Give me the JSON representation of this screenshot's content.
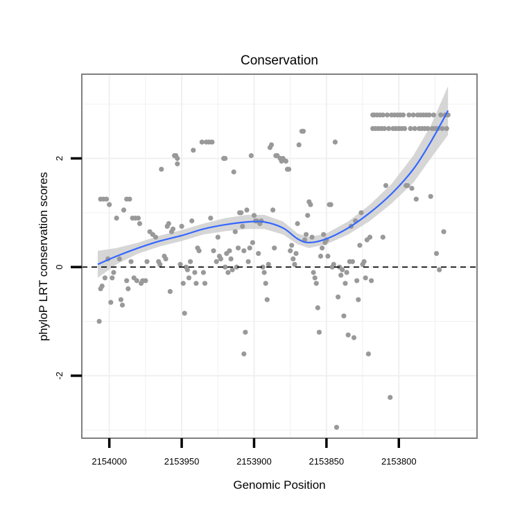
{
  "chart_data": {
    "type": "scatter",
    "title": "Conservation",
    "xlabel": "Genomic Position",
    "ylabel": "phyloP LRT conservation scores",
    "x_reversed": true,
    "xlim": [
      2154019,
      2153746
    ],
    "ylim": [
      -3.15,
      3.55
    ],
    "x_ticks": [
      2154000,
      2153950,
      2153900,
      2153850,
      2153800
    ],
    "x_tick_labels": [
      "2154000",
      "2153950",
      "2153900",
      "2153850",
      "2153800"
    ],
    "y_ticks": [
      2,
      0,
      -2
    ],
    "y_tick_labels": [
      "2",
      "0",
      "-2"
    ],
    "reference_line": {
      "y": 0,
      "style": "dashed"
    },
    "colors": {
      "points": "#999999",
      "smooth": "#3366ff",
      "band": "#c8c8c8",
      "frame": "#7f7f7f",
      "grid": "#f0f0f0"
    },
    "series": [
      {
        "name": "phyloP scores",
        "points": [
          [
            2154007,
            -1.0
          ],
          [
            2154006,
            1.25
          ],
          [
            2154004,
            1.25
          ],
          [
            2154002,
            1.25
          ],
          [
            2154006,
            -0.4
          ],
          [
            2154005,
            -0.35
          ],
          [
            2154003,
            -0.2
          ],
          [
            2154001,
            0.15
          ],
          [
            2154000,
            1.15
          ],
          [
            2153999,
            -0.65
          ],
          [
            2153998,
            -0.2
          ],
          [
            2153997,
            -0.1
          ],
          [
            2153995,
            0.9
          ],
          [
            2153993,
            0.15
          ],
          [
            2153992,
            -0.6
          ],
          [
            2153991,
            -0.7
          ],
          [
            2153990,
            1.05
          ],
          [
            2153988,
            1.25
          ],
          [
            2153986,
            1.25
          ],
          [
            2153988,
            -0.25
          ],
          [
            2153987,
            -0.4
          ],
          [
            2153985,
            0.1
          ],
          [
            2153984,
            0.9
          ],
          [
            2153982,
            0.9
          ],
          [
            2153980,
            0.9
          ],
          [
            2153983,
            -0.2
          ],
          [
            2153981,
            -0.25
          ],
          [
            2153979,
            0.8
          ],
          [
            2153978,
            -0.3
          ],
          [
            2153977,
            -0.25
          ],
          [
            2153975,
            -0.25
          ],
          [
            2153974,
            0.1
          ],
          [
            2153972,
            0.65
          ],
          [
            2153970,
            0.6
          ],
          [
            2153968,
            0.55
          ],
          [
            2153966,
            0.1
          ],
          [
            2153965,
            0.05
          ],
          [
            2153964,
            1.8
          ],
          [
            2153962,
            0.2
          ],
          [
            2153961,
            0.15
          ],
          [
            2153960,
            0.75
          ],
          [
            2153959,
            0.8
          ],
          [
            2153958,
            -0.45
          ],
          [
            2153957,
            0.65
          ],
          [
            2153956,
            0.7
          ],
          [
            2153955,
            2.05
          ],
          [
            2153954,
            2.05
          ],
          [
            2153953,
            2.0
          ],
          [
            2153953,
            1.9
          ],
          [
            2153951,
            0.05
          ],
          [
            2153950,
            0.75
          ],
          [
            2153949,
            -0.3
          ],
          [
            2153948,
            -0.85
          ],
          [
            2153947,
            0.0
          ],
          [
            2153946,
            -0.05
          ],
          [
            2153945,
            -0.2
          ],
          [
            2153944,
            0.1
          ],
          [
            2153943,
            0.85
          ],
          [
            2153942,
            2.15
          ],
          [
            2153941,
            -0.1
          ],
          [
            2153940,
            -0.3
          ],
          [
            2153939,
            0.35
          ],
          [
            2153938,
            0.3
          ],
          [
            2153936,
            2.3
          ],
          [
            2153935,
            -0.1
          ],
          [
            2153934,
            -0.3
          ],
          [
            2153933,
            2.3
          ],
          [
            2153931,
            2.3
          ],
          [
            2153929,
            2.3
          ],
          [
            2153930,
            0.9
          ],
          [
            2153928,
            0.3
          ],
          [
            2153926,
            0.1
          ],
          [
            2153925,
            0.55
          ],
          [
            2153924,
            0.2
          ],
          [
            2153923,
            0.15
          ],
          [
            2153921,
            2.0
          ],
          [
            2153920,
            2.0
          ],
          [
            2153920,
            0.0
          ],
          [
            2153919,
            0.25
          ],
          [
            2153918,
            -0.1
          ],
          [
            2153917,
            0.3
          ],
          [
            2153916,
            0.15
          ],
          [
            2153915,
            -0.05
          ],
          [
            2153914,
            1.75
          ],
          [
            2153913,
            0.65
          ],
          [
            2153912,
            0.0
          ],
          [
            2153911,
            0.35
          ],
          [
            2153910,
            1.0
          ],
          [
            2153909,
            1.0
          ],
          [
            2153908,
            0.75
          ],
          [
            2153907,
            0.3
          ],
          [
            2153906,
            -1.2
          ],
          [
            2153907,
            -1.6
          ],
          [
            2153905,
            1.05
          ],
          [
            2153904,
            0.1
          ],
          [
            2153903,
            0.35
          ],
          [
            2153902,
            2.05
          ],
          [
            2153901,
            0.45
          ],
          [
            2153900,
            0.95
          ],
          [
            2153899,
            0.85
          ],
          [
            2153898,
            0.85
          ],
          [
            2153897,
            0.25
          ],
          [
            2153896,
            0.8
          ],
          [
            2153895,
            0.85
          ],
          [
            2153894,
            0.0
          ],
          [
            2153893,
            -0.1
          ],
          [
            2153892,
            -0.3
          ],
          [
            2153891,
            -0.6
          ],
          [
            2153890,
            0.05
          ],
          [
            2153889,
            2.2
          ],
          [
            2153888,
            2.25
          ],
          [
            2153887,
            1.05
          ],
          [
            2153886,
            0.35
          ],
          [
            2153885,
            2.05
          ],
          [
            2153884,
            2.05
          ],
          [
            2153882,
            2.0
          ],
          [
            2153881,
            1.95
          ],
          [
            2153880,
            2.0
          ],
          [
            2153878,
            1.95
          ],
          [
            2153877,
            1.8
          ],
          [
            2153876,
            1.8
          ],
          [
            2153875,
            0.3
          ],
          [
            2153874,
            0.4
          ],
          [
            2153873,
            0.15
          ],
          [
            2153872,
            0.05
          ],
          [
            2153871,
            0.25
          ],
          [
            2153870,
            0.8
          ],
          [
            2153869,
            2.25
          ],
          [
            2153867,
            2.5
          ],
          [
            2153866,
            2.5
          ],
          [
            2153865,
            0.5
          ],
          [
            2153864,
            0.6
          ],
          [
            2153863,
            0.95
          ],
          [
            2153862,
            1.2
          ],
          [
            2153861,
            1.15
          ],
          [
            2153860,
            0.55
          ],
          [
            2153859,
            -0.1
          ],
          [
            2153858,
            -0.2
          ],
          [
            2153857,
            -0.3
          ],
          [
            2153856,
            -0.75
          ],
          [
            2153855,
            -1.2
          ],
          [
            2153854,
            0.2
          ],
          [
            2153853,
            0.35
          ],
          [
            2153852,
            0.6
          ],
          [
            2153851,
            0.45
          ],
          [
            2153850,
            0.5
          ],
          [
            2153849,
            0.2
          ],
          [
            2153848,
            1.15
          ],
          [
            2153847,
            1.15
          ],
          [
            2153846,
            0.0
          ],
          [
            2153845,
            0.05
          ],
          [
            2153844,
            2.3
          ],
          [
            2153843,
            -2.95
          ],
          [
            2153842,
            -0.55
          ],
          [
            2153841,
            0.0
          ],
          [
            2153840,
            -0.15
          ],
          [
            2153839,
            -0.05
          ],
          [
            2153838,
            -0.9
          ],
          [
            2153837,
            -0.3
          ],
          [
            2153836,
            -0.1
          ],
          [
            2153835,
            -1.25
          ],
          [
            2153834,
            0.1
          ],
          [
            2153833,
            0.75
          ],
          [
            2153832,
            0.1
          ],
          [
            2153831,
            -1.3
          ],
          [
            2153830,
            0.85
          ],
          [
            2153829,
            -0.25
          ],
          [
            2153828,
            -0.6
          ],
          [
            2153827,
            0.4
          ],
          [
            2153826,
            1.0
          ],
          [
            2153825,
            0.05
          ],
          [
            2153824,
            0.1
          ],
          [
            2153823,
            -0.2
          ],
          [
            2153822,
            0.5
          ],
          [
            2153821,
            -1.6
          ],
          [
            2153820,
            0.55
          ],
          [
            2153819,
            -0.25
          ],
          [
            2153818,
            2.8
          ],
          [
            2153818,
            2.55
          ],
          [
            2153817,
            2.8
          ],
          [
            2153816,
            2.55
          ],
          [
            2153815,
            2.8
          ],
          [
            2153814,
            2.55
          ],
          [
            2153813,
            2.8
          ],
          [
            2153812,
            2.55
          ],
          [
            2153811,
            2.8
          ],
          [
            2153810,
            2.55
          ],
          [
            2153811,
            0.55
          ],
          [
            2153809,
            1.5
          ],
          [
            2153808,
            2.8
          ],
          [
            2153807,
            2.55
          ],
          [
            2153806,
            -2.4
          ],
          [
            2153805,
            2.8
          ],
          [
            2153804,
            2.55
          ],
          [
            2153803,
            2.8
          ],
          [
            2153802,
            2.55
          ],
          [
            2153801,
            2.8
          ],
          [
            2153800,
            2.55
          ],
          [
            2153799,
            2.8
          ],
          [
            2153798,
            2.55
          ],
          [
            2153797,
            2.8
          ],
          [
            2153796,
            2.55
          ],
          [
            2153795,
            1.5
          ],
          [
            2153794,
            1.5
          ],
          [
            2153793,
            2.8
          ],
          [
            2153792,
            2.55
          ],
          [
            2153791,
            1.45
          ],
          [
            2153790,
            2.8
          ],
          [
            2153789,
            2.55
          ],
          [
            2153788,
            1.25
          ],
          [
            2153787,
            2.8
          ],
          [
            2153786,
            2.55
          ],
          [
            2153785,
            2.8
          ],
          [
            2153784,
            2.55
          ],
          [
            2153783,
            2.8
          ],
          [
            2153782,
            2.55
          ],
          [
            2153781,
            2.8
          ],
          [
            2153780,
            2.55
          ],
          [
            2153779,
            2.8
          ],
          [
            2153778,
            1.3
          ],
          [
            2153777,
            2.55
          ],
          [
            2153776,
            2.8
          ],
          [
            2153775,
            2.55
          ],
          [
            2153774,
            0.25
          ],
          [
            2153773,
            2.55
          ],
          [
            2153772,
            -0.05
          ],
          [
            2153771,
            2.8
          ],
          [
            2153770,
            2.55
          ],
          [
            2153769,
            0.65
          ],
          [
            2153768,
            2.8
          ],
          [
            2153767,
            2.55
          ],
          [
            2153766,
            2.8
          ]
        ]
      },
      {
        "name": "loess fit",
        "curve": [
          [
            2154008,
            0.05
          ],
          [
            2153995,
            0.2
          ],
          [
            2153980,
            0.35
          ],
          [
            2153965,
            0.48
          ],
          [
            2153950,
            0.58
          ],
          [
            2153935,
            0.7
          ],
          [
            2153920,
            0.78
          ],
          [
            2153905,
            0.83
          ],
          [
            2153893,
            0.83
          ],
          [
            2153880,
            0.72
          ],
          [
            2153870,
            0.52
          ],
          [
            2153862,
            0.45
          ],
          [
            2153850,
            0.52
          ],
          [
            2153835,
            0.72
          ],
          [
            2153820,
            1.0
          ],
          [
            2153805,
            1.35
          ],
          [
            2153790,
            1.8
          ],
          [
            2153778,
            2.3
          ],
          [
            2153766,
            2.88
          ]
        ],
        "band_halfwidth": [
          0.25,
          0.15,
          0.1,
          0.1,
          0.1,
          0.1,
          0.12,
          0.13,
          0.13,
          0.12,
          0.1,
          0.1,
          0.1,
          0.12,
          0.15,
          0.18,
          0.25,
          0.3,
          0.45
        ]
      }
    ]
  }
}
